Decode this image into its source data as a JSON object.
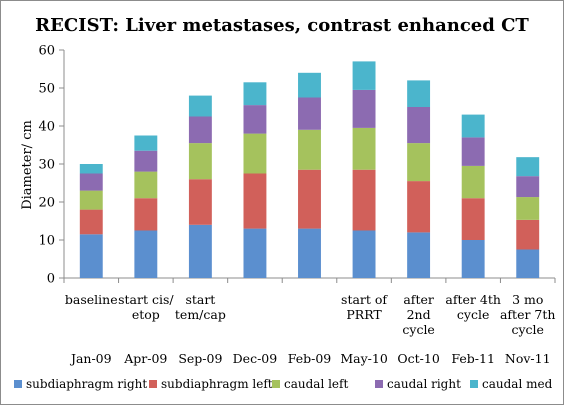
{
  "chart_data": {
    "type": "bar",
    "stacked": true,
    "title": "RECIST: Liver metastases, contrast enhanced CT",
    "ylabel": "Diameter/ cm",
    "xlabel": "",
    "ylim": [
      0,
      60
    ],
    "yticks": [
      0,
      10,
      20,
      30,
      40,
      50,
      60
    ],
    "grid": false,
    "legend_position": "bottom",
    "categories": [
      "Jan-09",
      "Apr-09",
      "Sep-09",
      "Dec-09",
      "Feb-09",
      "May-10",
      "Oct-10",
      "Feb-11",
      "Nov-11"
    ],
    "annotations": [
      [
        "baseline"
      ],
      [
        "start cis/",
        "etop"
      ],
      [
        "start",
        "tem/cap"
      ],
      [],
      [],
      [
        "start of",
        "PRRT"
      ],
      [
        "after",
        "2nd",
        "cycle"
      ],
      [
        "after 4th",
        "cycle"
      ],
      [
        "3 mo",
        "after 7th",
        "cycle"
      ]
    ],
    "series": [
      {
        "name": "subdiaphragm right",
        "color": "#5b8fcf",
        "values": [
          11.5,
          12.5,
          14.0,
          13.0,
          13.0,
          12.5,
          12.0,
          10.0,
          7.5
        ]
      },
      {
        "name": "subdiaphragm left",
        "color": "#d1605a",
        "values": [
          6.5,
          8.5,
          12.0,
          14.5,
          15.5,
          16.0,
          13.5,
          11.0,
          7.8
        ]
      },
      {
        "name": "caudal left",
        "color": "#a5c25d",
        "values": [
          5.0,
          7.0,
          9.5,
          10.5,
          10.5,
          11.0,
          10.0,
          8.5,
          6.0
        ]
      },
      {
        "name": "caudal right",
        "color": "#8c6bb1",
        "values": [
          4.5,
          5.5,
          7.0,
          7.5,
          8.5,
          10.0,
          9.5,
          7.5,
          5.5
        ]
      },
      {
        "name": "caudal med",
        "color": "#4bb5cc",
        "values": [
          2.5,
          4.0,
          5.5,
          6.0,
          6.5,
          7.5,
          7.0,
          6.0,
          5.0
        ]
      }
    ]
  }
}
